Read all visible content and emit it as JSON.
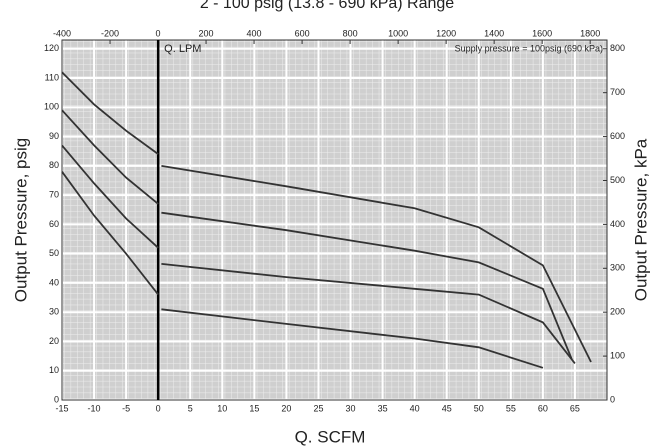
{
  "chart_data": {
    "type": "line",
    "title": "2 - 100 psig (13.8 - 690 kPa) Range",
    "xlabel": "Q. SCFM",
    "ylabel": "Output Pressure, psig",
    "y2label": "Output Pressure, kPa",
    "x2label": "Q. LPM",
    "annotation": "Supply pressure = 100psig (690 kPa)",
    "xlim": [
      -15,
      70
    ],
    "xticks": [
      -15,
      -10,
      -5,
      0,
      5,
      10,
      15,
      20,
      25,
      30,
      35,
      40,
      45,
      50,
      55,
      60,
      65
    ],
    "x2lim": [
      -400,
      1870
    ],
    "x2ticks": [
      -400,
      -200,
      0,
      200,
      400,
      600,
      800,
      1000,
      1200,
      1400,
      1600,
      1800
    ],
    "ylim": [
      0,
      123
    ],
    "yticks": [
      0,
      10,
      20,
      30,
      40,
      50,
      60,
      70,
      80,
      90,
      100,
      110,
      120
    ],
    "y2lim": [
      0,
      820
    ],
    "y2ticks": [
      0,
      100,
      200,
      300,
      400,
      500,
      600,
      700,
      800
    ],
    "grid": true,
    "series": [
      {
        "color": "#333333",
        "x": [
          -15,
          -10,
          -5,
          0,
          0,
          0.5,
          20,
          40,
          50,
          60,
          67.5
        ],
        "values": [
          112,
          101,
          92,
          84,
          null,
          80,
          73,
          65.5,
          59,
          46,
          13
        ]
      },
      {
        "color": "#333333",
        "x": [
          -15,
          -10,
          -5,
          0,
          0,
          0.5,
          20,
          40,
          50,
          60,
          64.5
        ],
        "values": [
          99,
          87,
          76,
          67,
          null,
          64,
          58,
          51,
          47,
          38,
          14
        ]
      },
      {
        "color": "#333333",
        "x": [
          -15,
          -10,
          -5,
          0,
          0,
          0.5,
          20,
          40,
          50,
          60,
          65
        ],
        "values": [
          87,
          74,
          62,
          52,
          null,
          46.5,
          42,
          38,
          36,
          26.5,
          12.5
        ]
      },
      {
        "color": "#333333",
        "x": [
          -15,
          -10,
          -5,
          0,
          0,
          0.5,
          20,
          40,
          50,
          60
        ],
        "values": [
          78,
          63,
          50,
          36,
          null,
          31,
          26,
          21,
          18,
          11
        ]
      }
    ]
  }
}
